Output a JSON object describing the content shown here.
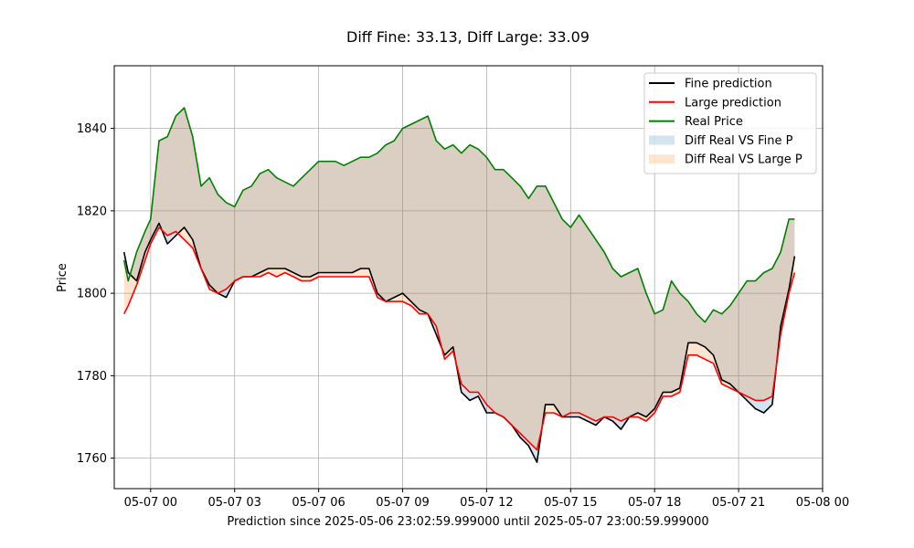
{
  "chart_data": {
    "type": "line",
    "title": "Diff Fine: 33.13, Diff Large: 33.09",
    "xlabel": "Prediction since 2025-05-06 23:02:59.999000 until 2025-05-07 23:00:59.999000",
    "ylabel": "Price",
    "x_unit": "hours",
    "xlim": [
      -1.3,
      24.0
    ],
    "ylim": [
      1752.6,
      1855.2
    ],
    "x_ticks": [
      {
        "value": 0,
        "label": "05-07 00"
      },
      {
        "value": 3,
        "label": "05-07 03"
      },
      {
        "value": 6,
        "label": "05-07 06"
      },
      {
        "value": 9,
        "label": "05-07 09"
      },
      {
        "value": 12,
        "label": "05-07 12"
      },
      {
        "value": 15,
        "label": "05-07 15"
      },
      {
        "value": 18,
        "label": "05-07 18"
      },
      {
        "value": 21,
        "label": "05-07 21"
      },
      {
        "value": 24,
        "label": "05-08 00"
      }
    ],
    "y_ticks": [
      {
        "value": 1760,
        "label": "1760"
      },
      {
        "value": 1780,
        "label": "1780"
      },
      {
        "value": 1800,
        "label": "1800"
      },
      {
        "value": 1820,
        "label": "1820"
      },
      {
        "value": 1840,
        "label": "1840"
      }
    ],
    "grid": true,
    "legend_position": "upper right",
    "x": [
      -0.95,
      -0.8,
      -0.5,
      -0.2,
      0.0,
      0.3,
      0.6,
      0.9,
      1.2,
      1.5,
      1.8,
      2.1,
      2.4,
      2.7,
      3.0,
      3.3,
      3.6,
      3.9,
      4.2,
      4.5,
      4.8,
      5.1,
      5.4,
      5.7,
      6.0,
      6.3,
      6.6,
      6.9,
      7.2,
      7.5,
      7.8,
      8.1,
      8.4,
      8.7,
      9.0,
      9.3,
      9.6,
      9.9,
      10.2,
      10.5,
      10.8,
      11.1,
      11.4,
      11.7,
      12.0,
      12.3,
      12.6,
      12.9,
      13.2,
      13.5,
      13.8,
      14.1,
      14.4,
      14.7,
      15.0,
      15.3,
      15.6,
      15.9,
      16.2,
      16.5,
      16.8,
      17.1,
      17.4,
      17.7,
      18.0,
      18.3,
      18.6,
      18.9,
      19.2,
      19.5,
      19.8,
      20.1,
      20.4,
      20.7,
      21.0,
      21.3,
      21.6,
      21.9,
      22.2,
      22.5,
      22.8,
      23.0
    ],
    "series": [
      {
        "name": "Fine prediction",
        "color": "#000000",
        "values": [
          1810,
          1805,
          1803,
          1810,
          1813,
          1817,
          1812,
          1814,
          1816,
          1813,
          1806,
          1802,
          1800,
          1799,
          1803,
          1804,
          1804,
          1805,
          1806,
          1806,
          1806,
          1805,
          1804,
          1804,
          1805,
          1805,
          1805,
          1805,
          1805,
          1806,
          1806,
          1800,
          1798,
          1799,
          1800,
          1798,
          1796,
          1795,
          1790,
          1785,
          1787,
          1776,
          1774,
          1775,
          1771,
          1771,
          1770,
          1768,
          1765,
          1763,
          1759,
          1773,
          1773,
          1770,
          1770,
          1770,
          1769,
          1768,
          1770,
          1769,
          1767,
          1770,
          1771,
          1770,
          1772,
          1776,
          1776,
          1777,
          1788,
          1788,
          1787,
          1785,
          1779,
          1778,
          1776,
          1774,
          1772,
          1771,
          1773,
          1792,
          1801,
          1809
        ]
      },
      {
        "name": "Large prediction",
        "color": "#ff0000",
        "values": [
          1795,
          1797,
          1802,
          1808,
          1812,
          1816,
          1814,
          1815,
          1813,
          1811,
          1806,
          1801,
          1800,
          1801,
          1803,
          1804,
          1804,
          1804,
          1805,
          1804,
          1805,
          1804,
          1803,
          1803,
          1804,
          1804,
          1804,
          1804,
          1804,
          1804,
          1804,
          1799,
          1798,
          1798,
          1798,
          1797,
          1795,
          1795,
          1792,
          1784,
          1786,
          1778,
          1776,
          1776,
          1773,
          1771,
          1770,
          1768,
          1766,
          1764,
          1762,
          1771,
          1771,
          1770,
          1771,
          1771,
          1770,
          1769,
          1770,
          1770,
          1769,
          1770,
          1770,
          1769,
          1771,
          1775,
          1775,
          1776,
          1785,
          1785,
          1784,
          1783,
          1778,
          1777,
          1776,
          1775,
          1774,
          1774,
          1775,
          1790,
          1800,
          1805
        ]
      },
      {
        "name": "Real Price",
        "color": "#008000",
        "values": [
          1808,
          1803,
          1810,
          1815,
          1818,
          1837,
          1838,
          1843,
          1845,
          1838,
          1826,
          1828,
          1824,
          1822,
          1821,
          1825,
          1826,
          1829,
          1830,
          1828,
          1827,
          1826,
          1828,
          1830,
          1832,
          1832,
          1832,
          1831,
          1832,
          1833,
          1833,
          1834,
          1836,
          1837,
          1840,
          1841,
          1842,
          1843,
          1837,
          1835,
          1836,
          1834,
          1836,
          1835,
          1833,
          1830,
          1830,
          1828,
          1826,
          1823,
          1826,
          1826,
          1822,
          1818,
          1816,
          1819,
          1816,
          1813,
          1810,
          1806,
          1804,
          1805,
          1806,
          1800,
          1795,
          1796,
          1803,
          1800,
          1798,
          1795,
          1793,
          1796,
          1795,
          1797,
          1800,
          1803,
          1803,
          1805,
          1806,
          1810,
          1818,
          1818
        ]
      }
    ],
    "fills": [
      {
        "name": "Diff Real VS Fine P",
        "between": [
          "Real Price",
          "Fine prediction"
        ],
        "color": "#1f77b4",
        "alpha": 0.2
      },
      {
        "name": "Diff Real VS Large P",
        "between": [
          "Real Price",
          "Large prediction"
        ],
        "color": "#ff7f0e",
        "alpha": 0.2
      }
    ]
  }
}
